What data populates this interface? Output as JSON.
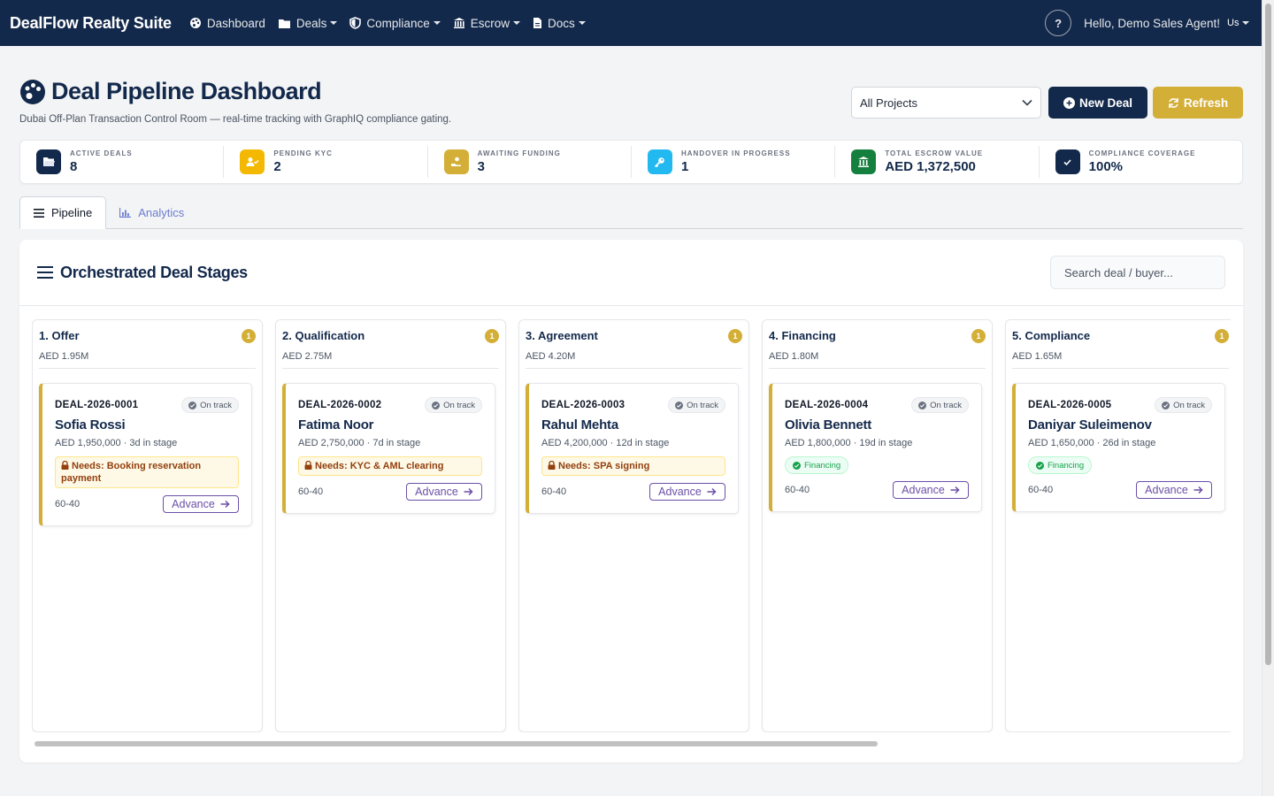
{
  "nav": {
    "brand": "DealFlow Realty Suite",
    "items": [
      {
        "label": "Dashboard",
        "icon": "palette-icon",
        "dropdown": false
      },
      {
        "label": "Deals",
        "icon": "folder-icon",
        "dropdown": true
      },
      {
        "label": "Compliance",
        "icon": "shield-icon",
        "dropdown": true
      },
      {
        "label": "Escrow",
        "icon": "bank-icon",
        "dropdown": true
      },
      {
        "label": "Docs",
        "icon": "file-icon",
        "dropdown": true
      }
    ],
    "help_label": "?",
    "greeting": "Hello, Demo Sales Agent!",
    "avatar_alt": "Us"
  },
  "header": {
    "title": "Deal Pipeline Dashboard",
    "subtitle": "Dubai Off-Plan Transaction Control Room — real-time tracking with GraphIQ compliance gating.",
    "project_filter": "All Projects",
    "new_deal_label": "New Deal",
    "refresh_label": "Refresh"
  },
  "kpis": [
    {
      "label": "ACTIVE DEALS",
      "value": "8",
      "color": "#13294b",
      "icon": "folder-open-icon"
    },
    {
      "label": "PENDING KYC",
      "value": "2",
      "color": "#f5b800",
      "icon": "user-check-icon"
    },
    {
      "label": "AWAITING FUNDING",
      "value": "3",
      "color": "#d4af37",
      "icon": "hand-coin-icon"
    },
    {
      "label": "HANDOVER IN PROGRESS",
      "value": "1",
      "color": "#22b8f0",
      "icon": "key-icon"
    },
    {
      "label": "TOTAL ESCROW VALUE",
      "value": "AED 1,372,500",
      "color": "#15803d",
      "icon": "bank-icon"
    },
    {
      "label": "COMPLIANCE COVERAGE",
      "value": "100%",
      "color": "#13294b",
      "icon": "check-badge-icon"
    }
  ],
  "tabs": [
    {
      "label": "Pipeline",
      "active": true
    },
    {
      "label": "Analytics",
      "active": false
    }
  ],
  "board": {
    "title": "Orchestrated Deal Stages",
    "search_placeholder": "Search deal / buyer..."
  },
  "stages": [
    {
      "name": "1. Offer",
      "total": "AED 1.95M",
      "count": "1",
      "deal": {
        "id": "DEAL-2026-0001",
        "status": "On track",
        "buyer": "Sofia Rossi",
        "meta": "AED 1,950,000 · 3d in stage",
        "needs": "Needs: Booking reservation payment",
        "financing": null,
        "split": "60-40",
        "action": "Advance"
      }
    },
    {
      "name": "2. Qualification",
      "total": "AED 2.75M",
      "count": "1",
      "deal": {
        "id": "DEAL-2026-0002",
        "status": "On track",
        "buyer": "Fatima Noor",
        "meta": "AED 2,750,000 · 7d in stage",
        "needs": "Needs: KYC & AML clearing",
        "financing": null,
        "split": "60-40",
        "action": "Advance"
      }
    },
    {
      "name": "3. Agreement",
      "total": "AED 4.20M",
      "count": "1",
      "deal": {
        "id": "DEAL-2026-0003",
        "status": "On track",
        "buyer": "Rahul Mehta",
        "meta": "AED 4,200,000 · 12d in stage",
        "needs": "Needs: SPA signing",
        "financing": null,
        "split": "60-40",
        "action": "Advance"
      }
    },
    {
      "name": "4. Financing",
      "total": "AED 1.80M",
      "count": "1",
      "deal": {
        "id": "DEAL-2026-0004",
        "status": "On track",
        "buyer": "Olivia Bennett",
        "meta": "AED 1,800,000 · 19d in stage",
        "needs": null,
        "financing": "Financing",
        "split": "60-40",
        "action": "Advance"
      }
    },
    {
      "name": "5. Compliance",
      "total": "AED 1.65M",
      "count": "1",
      "deal": {
        "id": "DEAL-2026-0005",
        "status": "On track",
        "buyer": "Daniyar Suleimenov",
        "meta": "AED 1,650,000 · 26d in stage",
        "needs": null,
        "financing": "Financing",
        "split": "60-40",
        "action": "Advance"
      }
    }
  ]
}
